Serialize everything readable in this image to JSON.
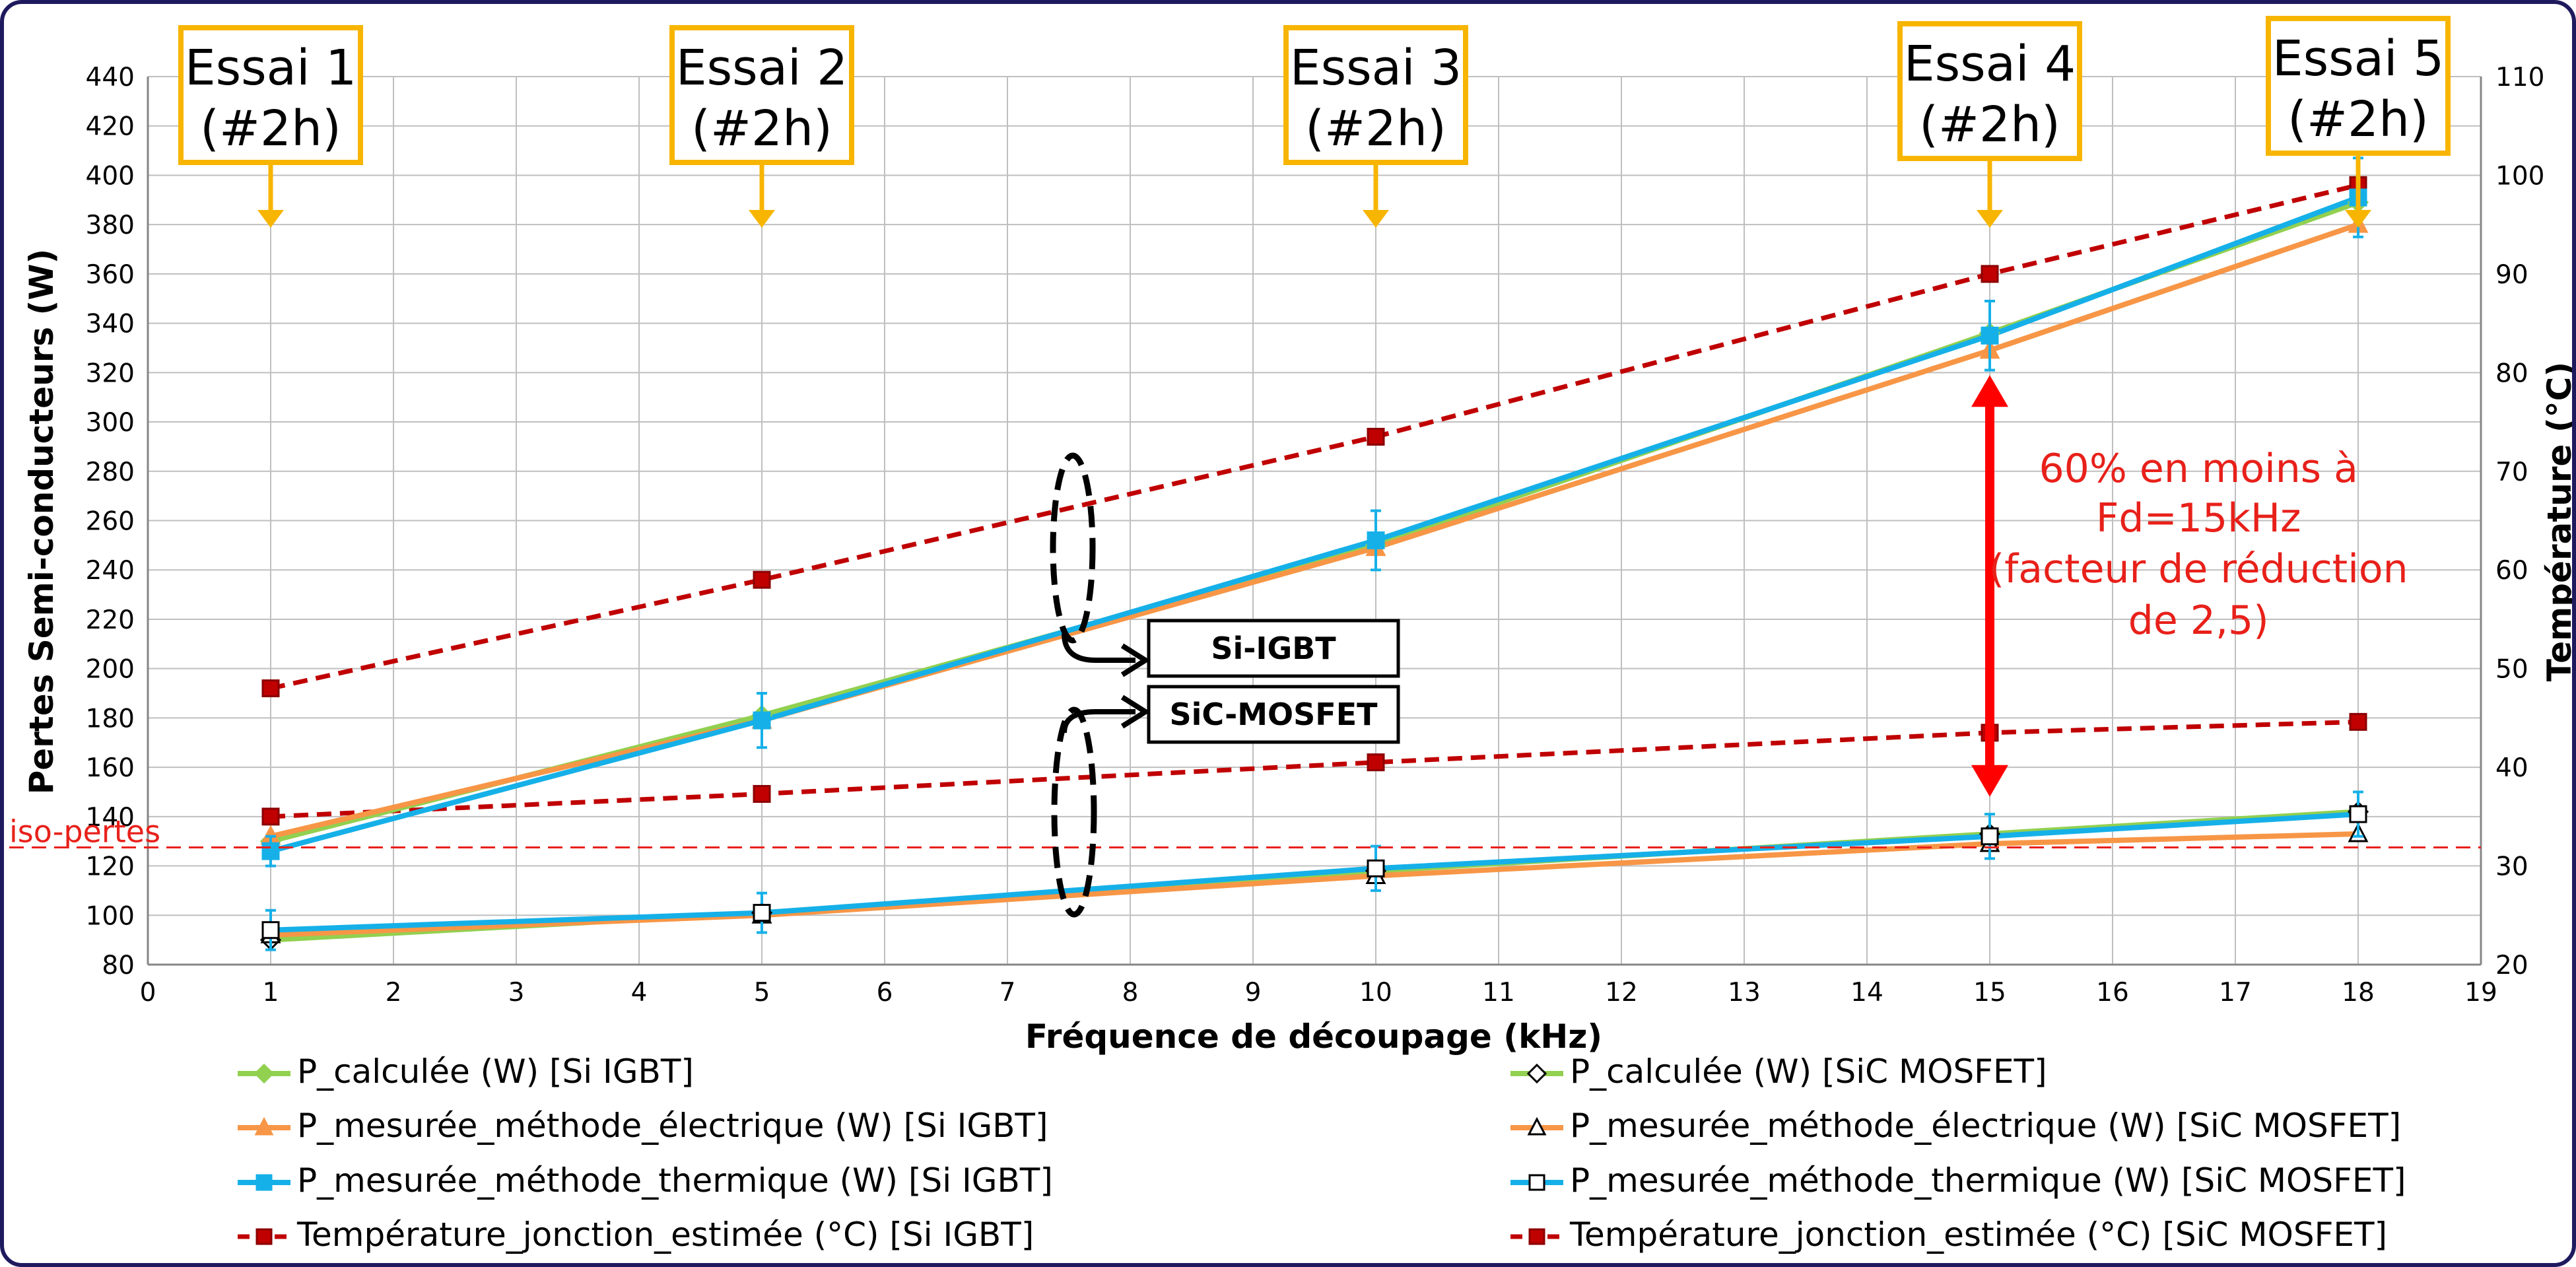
{
  "chart_data": {
    "type": "line",
    "title": "",
    "xlabel": "Fréquence de découpage (kHz)",
    "ylabel": "Pertes Semi-conducteurs (W)",
    "y2label": "Température (°C)",
    "xlim": [
      0,
      19
    ],
    "ylim": [
      80,
      440
    ],
    "y2lim": [
      20,
      110
    ],
    "x_ticks": [
      0,
      1,
      2,
      3,
      4,
      5,
      6,
      7,
      8,
      9,
      10,
      11,
      12,
      13,
      14,
      15,
      16,
      17,
      18,
      19
    ],
    "y_ticks": [
      80,
      100,
      120,
      140,
      160,
      180,
      200,
      220,
      240,
      260,
      280,
      300,
      320,
      340,
      360,
      380,
      400,
      420,
      440
    ],
    "y2_ticks": [
      20,
      30,
      40,
      50,
      60,
      70,
      80,
      90,
      100,
      110
    ],
    "grid": true,
    "legend_position": "bottom",
    "x": [
      1,
      5,
      10,
      15,
      18
    ],
    "series": [
      {
        "name": "P_calculée (W) [Si IGBT]",
        "axis": "left",
        "values": [
          130,
          181,
          250,
          336,
          389
        ],
        "color": "#92d050",
        "marker": "diamond",
        "style": "solid",
        "filled": true
      },
      {
        "name": "P_mesurée_méthode_électrique (W) [Si IGBT]",
        "axis": "left",
        "values": [
          132,
          179,
          249,
          329,
          380
        ],
        "color": "#f79646",
        "marker": "triangle",
        "style": "solid",
        "filled": true
      },
      {
        "name": "P_mesurée_méthode_thermique (W) [Si IGBT]",
        "axis": "left",
        "values": [
          126,
          179,
          252,
          335,
          391
        ],
        "color": "#16b0e8",
        "marker": "square",
        "style": "solid",
        "filled": true,
        "errors": [
          6,
          11,
          12,
          14,
          16
        ]
      },
      {
        "name": "Température_jonction_estimée (°C) [Si IGBT]",
        "axis": "right",
        "values": [
          48,
          59,
          73.5,
          90,
          99
        ],
        "color": "#c00000",
        "marker": "square",
        "style": "dashed",
        "filled": true
      },
      {
        "name": "P_calculée (W) [SiC MOSFET]",
        "axis": "left",
        "values": [
          90,
          101,
          118,
          133,
          142
        ],
        "color": "#92d050",
        "marker": "diamond",
        "style": "solid",
        "filled": false
      },
      {
        "name": "P_mesurée_méthode_électrique (W) [SiC MOSFET]",
        "axis": "left",
        "values": [
          92,
          100,
          116,
          129,
          133
        ],
        "color": "#f79646",
        "marker": "triangle",
        "style": "solid",
        "filled": false
      },
      {
        "name": "P_mesurée_méthode_thermique (W) [SiC MOSFET]",
        "axis": "left",
        "values": [
          94,
          101,
          119,
          132,
          141
        ],
        "color": "#16b0e8",
        "marker": "square",
        "style": "solid",
        "filled": false,
        "errors": [
          8,
          8,
          9,
          9,
          9
        ]
      },
      {
        "name": "Température_jonction_estimée (°C) [SiC MOSFET]",
        "axis": "right",
        "values": [
          35,
          37.3,
          40.5,
          43.5,
          44.6
        ],
        "color": "#c00000",
        "marker": "square",
        "style": "dashed",
        "filled": true
      }
    ],
    "iso_line": {
      "label": "iso-pertes",
      "value": 127.5
    },
    "essais": [
      {
        "label": "Essai 1",
        "sub": "(#2h)",
        "x": 1
      },
      {
        "label": "Essai 2",
        "sub": "(#2h)",
        "x": 5
      },
      {
        "label": "Essai 3",
        "sub": "(#2h)",
        "x": 10
      },
      {
        "label": "Essai 4",
        "sub": "(#2h)",
        "x": 15
      },
      {
        "label": "Essai 5",
        "sub": "(#2h)",
        "x": 18
      }
    ],
    "annotation_lines": [
      "60% en moins à",
      "Fd=15kHz",
      "(facteur de réduction",
      "de 2,5)"
    ],
    "device_labels": [
      "Si-IGBT",
      "SiC-MOSFET"
    ],
    "colors": {
      "accent_red": "#e8201a",
      "essai_box": "#f7b500",
      "frame": "#1f1a5e"
    }
  }
}
